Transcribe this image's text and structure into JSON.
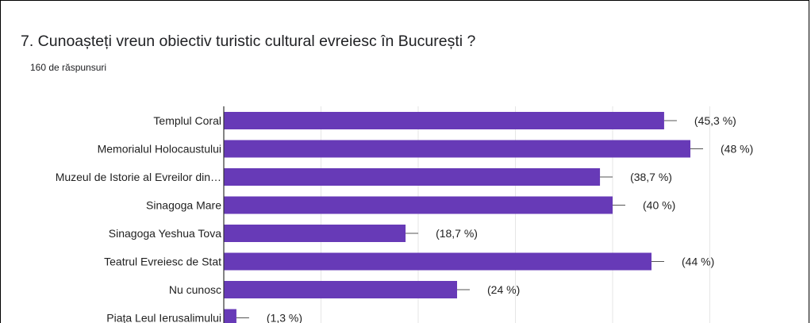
{
  "question": {
    "title": "7. Cunoașteți vreun obiectiv turistic cultural evreiesc în București ?",
    "responses": "160 de răspunsuri"
  },
  "colors": {
    "bar": "#673ab7",
    "grid": "#e6e6e6",
    "axis": "#333333",
    "text": "#222222"
  },
  "chart_data": {
    "type": "bar",
    "orientation": "horizontal",
    "title": "",
    "xlabel": "",
    "ylabel": "",
    "xlim": [
      0,
      80
    ],
    "grid": true,
    "categories": [
      "Templul Coral",
      "Memorialul Holocaustului",
      "Muzeul de Istorie al Evreilor din…",
      "Sinagoga Mare",
      "Sinagoga Yeshua Tova",
      "Teatrul Evreiesc de Stat",
      "Nu cunosc",
      "Piața Leul Ierusalimului"
    ],
    "values": [
      45.3,
      48,
      38.7,
      40,
      18.7,
      44,
      24,
      1.3
    ],
    "data_labels": [
      "(45,3 %)",
      "(48 %)",
      "(38,7 %)",
      "(40 %)",
      "(18,7 %)",
      "(44 %)",
      "(24 %)",
      "(1,3 %)"
    ]
  }
}
